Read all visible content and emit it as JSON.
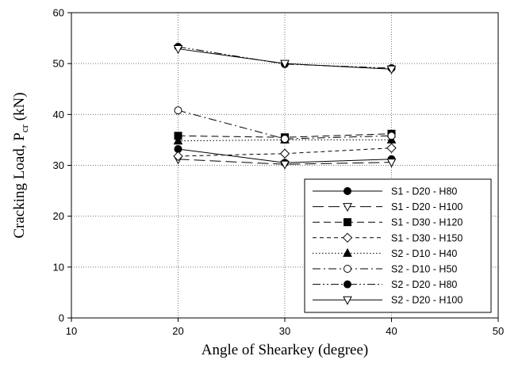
{
  "chart_data": {
    "type": "line",
    "xlabel": "Angle of Shearkey (degree)",
    "ylabel_main": "Cracking Load, P",
    "ylabel_sub": "cr",
    "ylabel_unit": " (kN)",
    "xlim": [
      10,
      50
    ],
    "ylim": [
      0,
      60
    ],
    "xticks": [
      "10",
      "20",
      "30",
      "40",
      "50"
    ],
    "yticks": [
      "0",
      "10",
      "20",
      "30",
      "40",
      "50",
      "60"
    ],
    "grid": "dotted",
    "legend_position": "bottom-right",
    "x": [
      20,
      30,
      40
    ],
    "series": [
      {
        "name": "S1 - D20 - H80",
        "values": [
          33.2,
          30.5,
          31.2
        ],
        "marker": "circle-filled",
        "dash": "solid"
      },
      {
        "name": "S1 - D20 - H100",
        "values": [
          31.2,
          30.2,
          30.6
        ],
        "marker": "triangle-down-open",
        "dash": "long-dash"
      },
      {
        "name": "S1 - D30 - H120",
        "values": [
          35.8,
          35.5,
          36.2
        ],
        "marker": "square-filled",
        "dash": "dash"
      },
      {
        "name": "S1 - D30 - H150",
        "values": [
          31.8,
          32.3,
          33.4
        ],
        "marker": "diamond-open",
        "dash": "short-dash"
      },
      {
        "name": "S2 - D10 - H40",
        "values": [
          34.8,
          35.0,
          35.0
        ],
        "marker": "triangle-up-filled",
        "dash": "dot"
      },
      {
        "name": "S2 - D10 - H50",
        "values": [
          40.8,
          35.2,
          35.8
        ],
        "marker": "circle-open",
        "dash": "dash-dot"
      },
      {
        "name": "S2 - D20 - H80",
        "values": [
          53.3,
          49.9,
          49.1
        ],
        "marker": "circle-filled",
        "dash": "dash-dot-dot"
      },
      {
        "name": "S2 - D20 - H100",
        "values": [
          52.9,
          50.0,
          48.9
        ],
        "marker": "triangle-down-open",
        "dash": "solid"
      }
    ]
  }
}
